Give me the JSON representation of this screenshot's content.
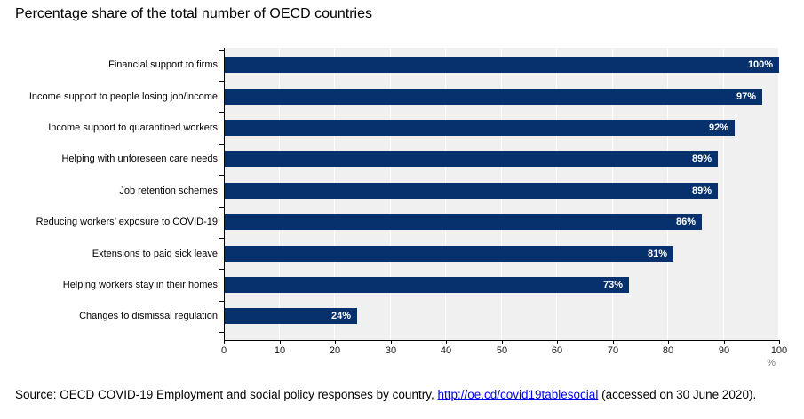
{
  "chart_data": {
    "type": "bar",
    "orientation": "horizontal",
    "title": "Percentage share of the total number of OECD countries",
    "categories": [
      "Financial support to firms",
      "Income support to people losing job/income",
      "Income support to quarantined workers",
      "Helping with unforeseen care needs",
      "Job retention schemes",
      "Reducing workers’ exposure to COVID-19",
      "Extensions to paid sick leave",
      "Helping workers stay in their homes",
      "Changes to dismissal regulation"
    ],
    "values": [
      100,
      97,
      92,
      89,
      89,
      86,
      81,
      73,
      24
    ],
    "value_labels": [
      "100%",
      "97%",
      "92%",
      "89%",
      "89%",
      "86%",
      "81%",
      "73%",
      "24%"
    ],
    "xlim": [
      0,
      100
    ],
    "x_ticks": [
      0,
      10,
      20,
      30,
      40,
      50,
      60,
      70,
      80,
      90,
      100
    ],
    "x_unit_label": "%",
    "legend": "none",
    "grid": "vertical white gridlines on gray plot background",
    "colors": {
      "bar": "#06316c",
      "plot_background": "#f0f0f0",
      "gridline": "#ffffff",
      "axis": "#000000",
      "value_label_text": "#ffffff",
      "unit_label_text": "#808080"
    }
  },
  "source": {
    "prefix": "Source: OECD COVID-19 Employment and social policy responses by country, ",
    "link_text": "http://oe.cd/covid19tablesocial",
    "suffix": " (accessed on 30 June 2020)."
  }
}
